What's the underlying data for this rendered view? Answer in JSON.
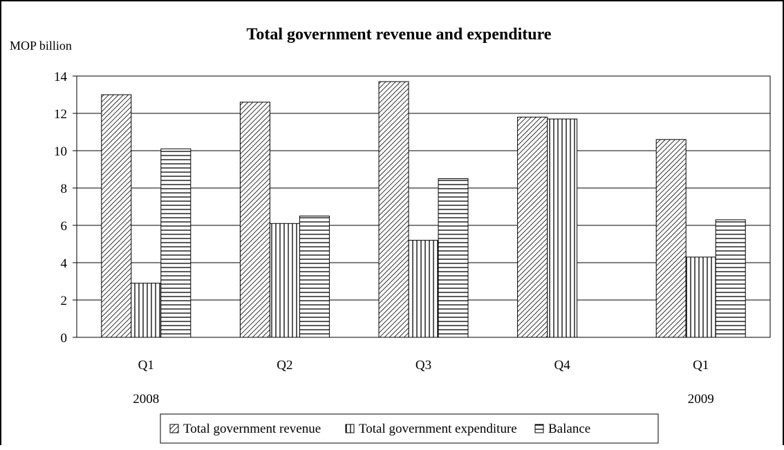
{
  "chart_data": {
    "type": "bar",
    "title": "Total government revenue and expenditure",
    "ylabel": "MOP billion",
    "xlabel": "",
    "categories": [
      "Q1",
      "Q2",
      "Q3",
      "Q4",
      "Q1"
    ],
    "year_labels": [
      "2008",
      "",
      "",
      "",
      "2009"
    ],
    "ylim": [
      0,
      14
    ],
    "yticks": [
      0,
      2,
      4,
      6,
      8,
      10,
      12,
      14
    ],
    "grid": true,
    "legend_position": "bottom",
    "series": [
      {
        "name": "Total government revenue",
        "pattern": "diagonal-hatch",
        "values": [
          13.0,
          12.6,
          13.7,
          11.8,
          10.6
        ]
      },
      {
        "name": "Total government expenditure",
        "pattern": "vertical-hatch",
        "values": [
          2.9,
          6.1,
          5.2,
          11.7,
          4.3
        ]
      },
      {
        "name": "Balance",
        "pattern": "horizontal-hatch",
        "values": [
          10.1,
          6.5,
          8.5,
          null,
          6.3
        ]
      }
    ]
  }
}
